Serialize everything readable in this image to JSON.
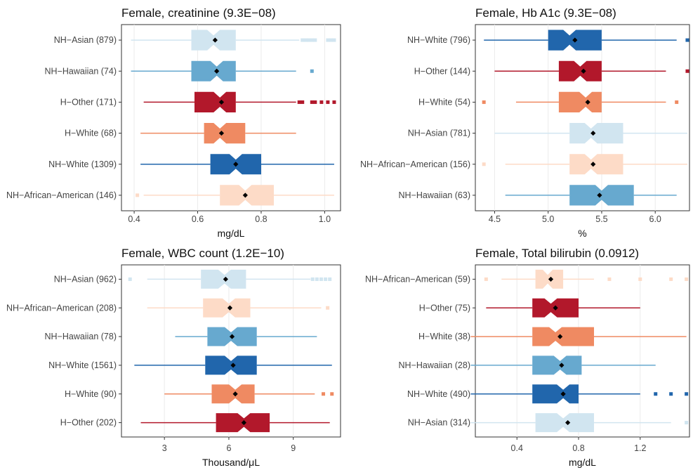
{
  "chart_data": [
    {
      "type": "boxplot",
      "title": "Female, creatinine (9.3E−08)",
      "xlabel": "mg/dL",
      "xlim": [
        0.36,
        1.05
      ],
      "xticks": [
        0.4,
        0.6,
        0.8,
        1.0
      ],
      "xtick_labels": [
        "0.4",
        "0.6",
        "0.8",
        "1.0"
      ],
      "groups": [
        {
          "label": "NH−Asian (879)",
          "color": "#d1e5f0",
          "whisker_low": 0.39,
          "q1": 0.58,
          "median": 0.65,
          "q3": 0.72,
          "whisker_high": 0.92,
          "mean": 0.655,
          "outliers": [
            0.93,
            0.94,
            0.95,
            0.96,
            0.97,
            1.01,
            1.02,
            1.03
          ]
        },
        {
          "label": "NH−Hawaiian (74)",
          "color": "#67a9cf",
          "whisker_low": 0.39,
          "q1": 0.58,
          "median": 0.66,
          "q3": 0.72,
          "whisker_high": 0.91,
          "mean": 0.66,
          "outliers": [
            0.96
          ]
        },
        {
          "label": "H−Other (171)",
          "color": "#b2182b",
          "whisker_low": 0.43,
          "q1": 0.59,
          "median": 0.67,
          "q3": 0.72,
          "whisker_high": 0.91,
          "mean": 0.675,
          "outliers": [
            0.92,
            0.93,
            0.96,
            0.97,
            0.99,
            1.01,
            1.03
          ]
        },
        {
          "label": "H−White (68)",
          "color": "#ef8a62",
          "whisker_low": 0.42,
          "q1": 0.62,
          "median": 0.67,
          "q3": 0.75,
          "whisker_high": 0.91,
          "mean": 0.675,
          "outliers": []
        },
        {
          "label": "NH−White (1309)",
          "color": "#2166ac",
          "whisker_low": 0.42,
          "q1": 0.64,
          "median": 0.72,
          "q3": 0.8,
          "whisker_high": 1.03,
          "mean": 0.72,
          "outliers": []
        },
        {
          "label": "NH−African−American (146)",
          "color": "#fddbc7",
          "whisker_low": 0.43,
          "q1": 0.67,
          "median": 0.75,
          "q3": 0.84,
          "whisker_high": 1.03,
          "mean": 0.75,
          "outliers": [
            0.41
          ]
        }
      ]
    },
    {
      "type": "boxplot",
      "title": "Female, Hb A1c (9.3E−08)",
      "xlabel": "%",
      "xlim": [
        4.32,
        6.32
      ],
      "xticks": [
        4.5,
        5.0,
        5.5,
        6.0
      ],
      "xtick_labels": [
        "4.5",
        "5.0",
        "5.5",
        "6.0"
      ],
      "groups": [
        {
          "label": "NH−White (796)",
          "color": "#2166ac",
          "whisker_low": 4.4,
          "q1": 5.0,
          "median": 5.2,
          "q3": 5.5,
          "whisker_high": 6.2,
          "mean": 5.25,
          "outliers": [
            6.3
          ]
        },
        {
          "label": "H−Other (144)",
          "color": "#b2182b",
          "whisker_low": 4.5,
          "q1": 5.1,
          "median": 5.3,
          "q3": 5.5,
          "whisker_high": 6.1,
          "mean": 5.33,
          "outliers": [
            6.3
          ]
        },
        {
          "label": "H−White (54)",
          "color": "#ef8a62",
          "whisker_low": 4.7,
          "q1": 5.1,
          "median": 5.35,
          "q3": 5.5,
          "whisker_high": 6.1,
          "mean": 5.37,
          "outliers": [
            4.4,
            6.2
          ]
        },
        {
          "label": "NH−Asian (781)",
          "color": "#d1e5f0",
          "whisker_low": 4.5,
          "q1": 5.2,
          "median": 5.4,
          "q3": 5.7,
          "whisker_high": 6.3,
          "mean": 5.42,
          "outliers": []
        },
        {
          "label": "NH−African−American (156)",
          "color": "#fddbc7",
          "whisker_low": 4.6,
          "q1": 5.2,
          "median": 5.4,
          "q3": 5.7,
          "whisker_high": 6.3,
          "mean": 5.42,
          "outliers": [
            4.4
          ]
        },
        {
          "label": "NH−Hawaiian (63)",
          "color": "#67a9cf",
          "whisker_low": 4.6,
          "q1": 5.2,
          "median": 5.5,
          "q3": 5.8,
          "whisker_high": 6.2,
          "mean": 5.48,
          "outliers": []
        }
      ]
    },
    {
      "type": "boxplot",
      "title": "Female, WBC count (1.2E−10)",
      "xlabel": "Thousand/μL",
      "xlim": [
        1.0,
        11.2
      ],
      "xticks": [
        3,
        6,
        9
      ],
      "xtick_labels": [
        "3",
        "6",
        "9"
      ],
      "groups": [
        {
          "label": "NH−Asian (962)",
          "color": "#d1e5f0",
          "whisker_low": 2.2,
          "q1": 4.7,
          "median": 5.8,
          "q3": 6.8,
          "whisker_high": 9.8,
          "mean": 5.85,
          "outliers": [
            1.4,
            9.9,
            10.1,
            10.3,
            10.5,
            10.7
          ]
        },
        {
          "label": "NH−African−American (208)",
          "color": "#fddbc7",
          "whisker_low": 2.2,
          "q1": 4.8,
          "median": 6.0,
          "q3": 7.0,
          "whisker_high": 10.3,
          "mean": 6.05,
          "outliers": [
            10.6
          ]
        },
        {
          "label": "NH−Hawaiian (78)",
          "color": "#67a9cf",
          "whisker_low": 3.5,
          "q1": 5.0,
          "median": 6.1,
          "q3": 7.3,
          "whisker_high": 10.1,
          "mean": 6.15,
          "outliers": []
        },
        {
          "label": "NH−White (1561)",
          "color": "#2166ac",
          "whisker_low": 1.6,
          "q1": 4.9,
          "median": 6.1,
          "q3": 7.3,
          "whisker_high": 10.8,
          "mean": 6.2,
          "outliers": []
        },
        {
          "label": "H−White (90)",
          "color": "#ef8a62",
          "whisker_low": 3.0,
          "q1": 5.2,
          "median": 6.3,
          "q3": 7.2,
          "whisker_high": 10.0,
          "mean": 6.3,
          "outliers": [
            10.4,
            10.8
          ]
        },
        {
          "label": "H−Other (202)",
          "color": "#b2182b",
          "whisker_low": 1.9,
          "q1": 5.4,
          "median": 6.7,
          "q3": 7.9,
          "whisker_high": 10.7,
          "mean": 6.7,
          "outliers": []
        }
      ]
    },
    {
      "type": "boxplot",
      "title": "Female, Total bilirubin (0.0912)",
      "xlabel": "mg/dL",
      "xlim": [
        0.13,
        1.52
      ],
      "xticks": [
        0.4,
        0.8,
        1.2
      ],
      "xtick_labels": [
        "0.4",
        "0.8",
        "1.2"
      ],
      "groups": [
        {
          "label": "NH−African−American (59)",
          "color": "#fddbc7",
          "whisker_low": 0.3,
          "q1": 0.52,
          "median": 0.6,
          "q3": 0.7,
          "whisker_high": 0.9,
          "mean": 0.62,
          "outliers": [
            0.2,
            1.0,
            1.2,
            1.4,
            1.5
          ]
        },
        {
          "label": "H−Other (75)",
          "color": "#b2182b",
          "whisker_low": 0.2,
          "q1": 0.5,
          "median": 0.62,
          "q3": 0.8,
          "whisker_high": 1.2,
          "mean": 0.65,
          "outliers": []
        },
        {
          "label": "H−White (38)",
          "color": "#ef8a62",
          "whisker_low": 0.1,
          "q1": 0.5,
          "median": 0.65,
          "q3": 0.9,
          "whisker_high": 1.5,
          "mean": 0.68,
          "outliers": []
        },
        {
          "label": "NH−Hawaiian (28)",
          "color": "#67a9cf",
          "whisker_low": 0.1,
          "q1": 0.5,
          "median": 0.68,
          "q3": 0.82,
          "whisker_high": 1.3,
          "mean": 0.69,
          "outliers": []
        },
        {
          "label": "NH−White (490)",
          "color": "#2166ac",
          "whisker_low": 0.1,
          "q1": 0.5,
          "median": 0.7,
          "q3": 0.8,
          "whisker_high": 1.2,
          "mean": 0.7,
          "outliers": [
            1.3,
            1.4,
            1.5
          ]
        },
        {
          "label": "NH−Asian (314)",
          "color": "#d1e5f0",
          "whisker_low": 0.1,
          "q1": 0.52,
          "median": 0.7,
          "q3": 0.9,
          "whisker_high": 1.4,
          "mean": 0.73,
          "outliers": [
            1.5
          ]
        }
      ]
    }
  ]
}
